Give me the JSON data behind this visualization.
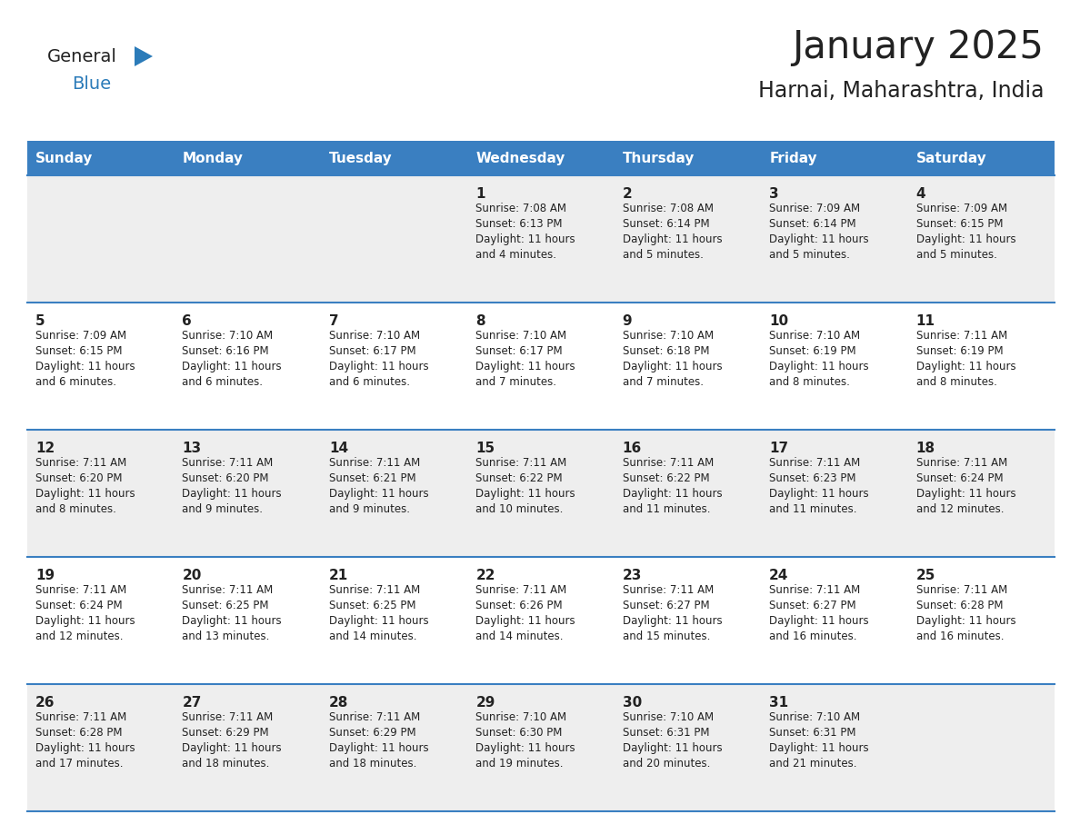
{
  "title": "January 2025",
  "subtitle": "Harnai, Maharashtra, India",
  "header_bg_color": "#3a7fc1",
  "header_text_color": "#ffffff",
  "days_of_week": [
    "Sunday",
    "Monday",
    "Tuesday",
    "Wednesday",
    "Thursday",
    "Friday",
    "Saturday"
  ],
  "row_bg_odd": "#eeeeee",
  "row_bg_even": "#ffffff",
  "cell_border_color": "#3a7fc1",
  "text_color": "#222222",
  "logo_general_color": "#222222",
  "logo_blue_color": "#2b7bb9",
  "calendar_data": [
    [
      {
        "day": null,
        "info": null
      },
      {
        "day": null,
        "info": null
      },
      {
        "day": null,
        "info": null
      },
      {
        "day": 1,
        "info": "Sunrise: 7:08 AM\nSunset: 6:13 PM\nDaylight: 11 hours\nand 4 minutes."
      },
      {
        "day": 2,
        "info": "Sunrise: 7:08 AM\nSunset: 6:14 PM\nDaylight: 11 hours\nand 5 minutes."
      },
      {
        "day": 3,
        "info": "Sunrise: 7:09 AM\nSunset: 6:14 PM\nDaylight: 11 hours\nand 5 minutes."
      },
      {
        "day": 4,
        "info": "Sunrise: 7:09 AM\nSunset: 6:15 PM\nDaylight: 11 hours\nand 5 minutes."
      }
    ],
    [
      {
        "day": 5,
        "info": "Sunrise: 7:09 AM\nSunset: 6:15 PM\nDaylight: 11 hours\nand 6 minutes."
      },
      {
        "day": 6,
        "info": "Sunrise: 7:10 AM\nSunset: 6:16 PM\nDaylight: 11 hours\nand 6 minutes."
      },
      {
        "day": 7,
        "info": "Sunrise: 7:10 AM\nSunset: 6:17 PM\nDaylight: 11 hours\nand 6 minutes."
      },
      {
        "day": 8,
        "info": "Sunrise: 7:10 AM\nSunset: 6:17 PM\nDaylight: 11 hours\nand 7 minutes."
      },
      {
        "day": 9,
        "info": "Sunrise: 7:10 AM\nSunset: 6:18 PM\nDaylight: 11 hours\nand 7 minutes."
      },
      {
        "day": 10,
        "info": "Sunrise: 7:10 AM\nSunset: 6:19 PM\nDaylight: 11 hours\nand 8 minutes."
      },
      {
        "day": 11,
        "info": "Sunrise: 7:11 AM\nSunset: 6:19 PM\nDaylight: 11 hours\nand 8 minutes."
      }
    ],
    [
      {
        "day": 12,
        "info": "Sunrise: 7:11 AM\nSunset: 6:20 PM\nDaylight: 11 hours\nand 8 minutes."
      },
      {
        "day": 13,
        "info": "Sunrise: 7:11 AM\nSunset: 6:20 PM\nDaylight: 11 hours\nand 9 minutes."
      },
      {
        "day": 14,
        "info": "Sunrise: 7:11 AM\nSunset: 6:21 PM\nDaylight: 11 hours\nand 9 minutes."
      },
      {
        "day": 15,
        "info": "Sunrise: 7:11 AM\nSunset: 6:22 PM\nDaylight: 11 hours\nand 10 minutes."
      },
      {
        "day": 16,
        "info": "Sunrise: 7:11 AM\nSunset: 6:22 PM\nDaylight: 11 hours\nand 11 minutes."
      },
      {
        "day": 17,
        "info": "Sunrise: 7:11 AM\nSunset: 6:23 PM\nDaylight: 11 hours\nand 11 minutes."
      },
      {
        "day": 18,
        "info": "Sunrise: 7:11 AM\nSunset: 6:24 PM\nDaylight: 11 hours\nand 12 minutes."
      }
    ],
    [
      {
        "day": 19,
        "info": "Sunrise: 7:11 AM\nSunset: 6:24 PM\nDaylight: 11 hours\nand 12 minutes."
      },
      {
        "day": 20,
        "info": "Sunrise: 7:11 AM\nSunset: 6:25 PM\nDaylight: 11 hours\nand 13 minutes."
      },
      {
        "day": 21,
        "info": "Sunrise: 7:11 AM\nSunset: 6:25 PM\nDaylight: 11 hours\nand 14 minutes."
      },
      {
        "day": 22,
        "info": "Sunrise: 7:11 AM\nSunset: 6:26 PM\nDaylight: 11 hours\nand 14 minutes."
      },
      {
        "day": 23,
        "info": "Sunrise: 7:11 AM\nSunset: 6:27 PM\nDaylight: 11 hours\nand 15 minutes."
      },
      {
        "day": 24,
        "info": "Sunrise: 7:11 AM\nSunset: 6:27 PM\nDaylight: 11 hours\nand 16 minutes."
      },
      {
        "day": 25,
        "info": "Sunrise: 7:11 AM\nSunset: 6:28 PM\nDaylight: 11 hours\nand 16 minutes."
      }
    ],
    [
      {
        "day": 26,
        "info": "Sunrise: 7:11 AM\nSunset: 6:28 PM\nDaylight: 11 hours\nand 17 minutes."
      },
      {
        "day": 27,
        "info": "Sunrise: 7:11 AM\nSunset: 6:29 PM\nDaylight: 11 hours\nand 18 minutes."
      },
      {
        "day": 28,
        "info": "Sunrise: 7:11 AM\nSunset: 6:29 PM\nDaylight: 11 hours\nand 18 minutes."
      },
      {
        "day": 29,
        "info": "Sunrise: 7:10 AM\nSunset: 6:30 PM\nDaylight: 11 hours\nand 19 minutes."
      },
      {
        "day": 30,
        "info": "Sunrise: 7:10 AM\nSunset: 6:31 PM\nDaylight: 11 hours\nand 20 minutes."
      },
      {
        "day": 31,
        "info": "Sunrise: 7:10 AM\nSunset: 6:31 PM\nDaylight: 11 hours\nand 21 minutes."
      },
      {
        "day": null,
        "info": null
      }
    ]
  ]
}
